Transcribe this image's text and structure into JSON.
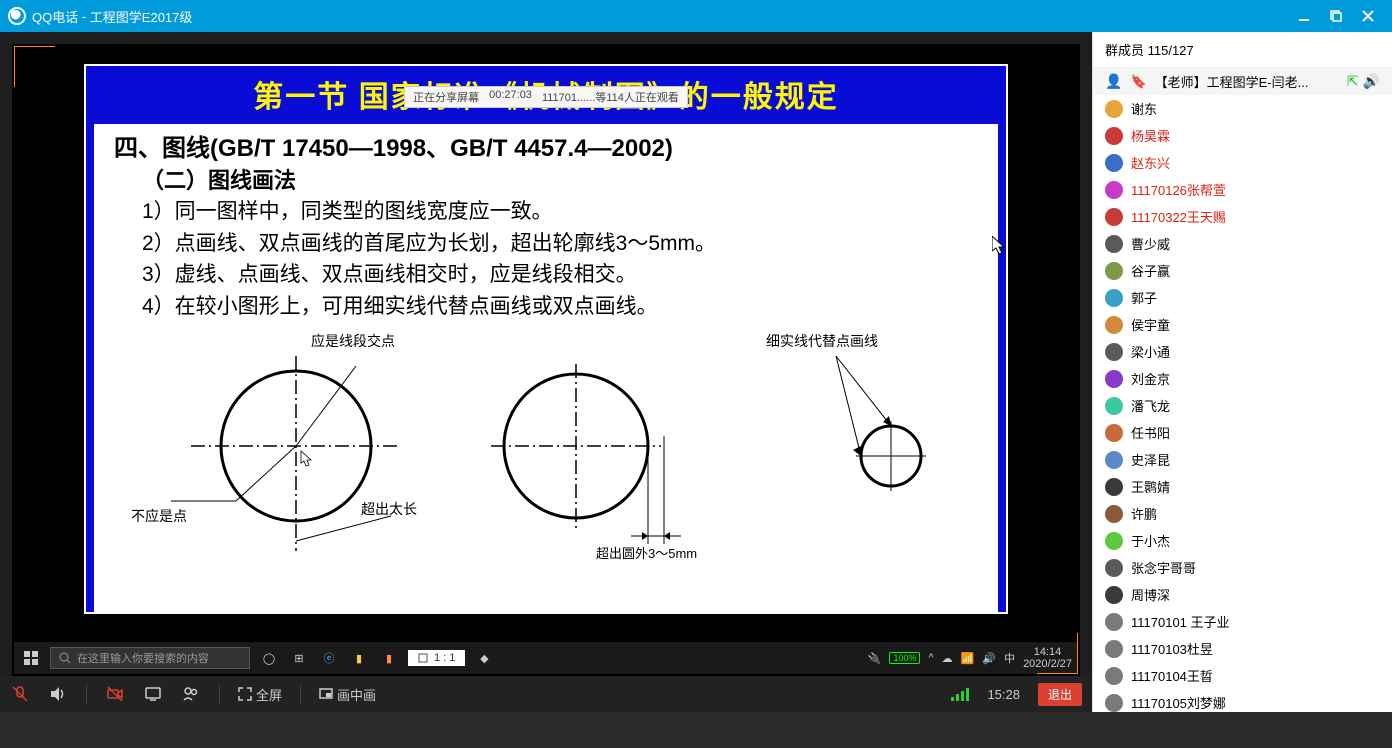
{
  "titlebar": {
    "app": "QQ电话",
    "title": "工程图学E2017级"
  },
  "share_bar": {
    "status": "正在分享屏幕",
    "time": "00:27:03",
    "viewers": "111701......等114人正在观看"
  },
  "slide": {
    "title": "第一节  国家标准《机械制图》的一般规定",
    "heading": "四、图线(GB/T 17450—1998、GB/T 4457.4—2002)",
    "sub": "（二）图线画法",
    "items": [
      "1）同一图样中，同类型的图线宽度应一致。",
      "2）点画线、双点画线的首尾应为长划，超出轮廓线3～5mm。",
      "3）虚线、点画线、双点画线相交时，应是线段相交。",
      "4）在较小图形上，可用细实线代替点画线或双点画线。"
    ],
    "labels": {
      "d1_top": "应是线段交点",
      "d1_left": "不应是点",
      "d1_right": "超出太长",
      "d2_bottom": "超出圆外3～5mm",
      "d3_top": "细实线代替点画线"
    }
  },
  "inner_tb": {
    "search_ph": "在这里输入你要搜索的内容",
    "zoom": "1 : 1",
    "battery": "100%",
    "ime": "中",
    "time": "14:14",
    "date": "2020/2/27"
  },
  "bottom": {
    "fullscreen": "全屏",
    "pip": "画中画",
    "time": "15:28",
    "exit": "退出"
  },
  "sidebar": {
    "header": "群成员 115/127",
    "teacher": {
      "label": "【老师】工程图学E-闫老...",
      "avatar": "#d4a85a"
    },
    "members": [
      {
        "name": "谢东",
        "avatar": "#e8a33b",
        "red": false
      },
      {
        "name": "杨昊霖",
        "avatar": "#c93a3a",
        "red": true
      },
      {
        "name": "赵东兴",
        "avatar": "#3a6ec9",
        "red": true
      },
      {
        "name": "11170126张帮萱",
        "avatar": "#c93ac9",
        "red": true
      },
      {
        "name": "11170322王天赐",
        "avatar": "#c93a3a",
        "red": true
      },
      {
        "name": "曹少威",
        "avatar": "#5a5a5a",
        "red": false
      },
      {
        "name": "谷子赢",
        "avatar": "#7a9a4a",
        "red": false
      },
      {
        "name": "郭子",
        "avatar": "#3aa0c9",
        "red": false
      },
      {
        "name": "侯宇童",
        "avatar": "#d48a3a",
        "red": false
      },
      {
        "name": "梁小通",
        "avatar": "#5a5a5a",
        "red": false
      },
      {
        "name": "刘金京",
        "avatar": "#8a3ac9",
        "red": false
      },
      {
        "name": "潘飞龙",
        "avatar": "#3ac9a0",
        "red": false
      },
      {
        "name": "任书阳",
        "avatar": "#c96a3a",
        "red": false
      },
      {
        "name": "史泽昆",
        "avatar": "#5a8ac9",
        "red": false
      },
      {
        "name": "王鹮婧",
        "avatar": "#3a3a3a",
        "red": false
      },
      {
        "name": "许鹏",
        "avatar": "#8a5a3a",
        "red": false
      },
      {
        "name": "于小杰",
        "avatar": "#5ac93a",
        "red": false
      },
      {
        "name": "张念宇哥哥",
        "avatar": "#5a5a5a",
        "red": false
      },
      {
        "name": "周博深",
        "avatar": "#3a3a3a",
        "red": false
      },
      {
        "name": "11170101 王子业",
        "avatar": "#7a7a7a",
        "red": false
      },
      {
        "name": "11170103杜昱",
        "avatar": "#7a7a7a",
        "red": false
      },
      {
        "name": "11170104王晢",
        "avatar": "#7a7a7a",
        "red": false
      },
      {
        "name": "11170105刘梦娜",
        "avatar": "#7a7a7a",
        "red": false
      }
    ]
  }
}
